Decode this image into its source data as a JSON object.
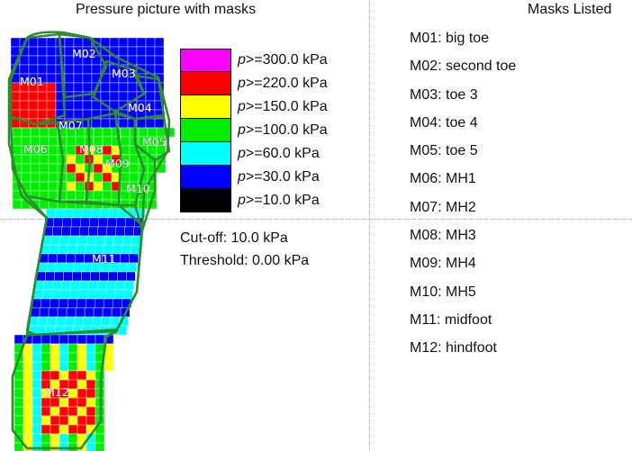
{
  "titles": {
    "left": "Pressure picture with masks",
    "right": "Masks Listed"
  },
  "legend": [
    {
      "sym": "p",
      "text": ">=300.0 kPa",
      "color": "#ff00ff"
    },
    {
      "sym": "p",
      "text": ">=220.0 kPa",
      "color": "#ff0000"
    },
    {
      "sym": "p",
      "text": ">=150.0 kPa",
      "color": "#ffff00"
    },
    {
      "sym": "p",
      "text": ">=100.0 kPa",
      "color": "#00ee00"
    },
    {
      "sym": "p",
      "text": ">=60.0 kPa",
      "color": "#00ffff"
    },
    {
      "sym": "p",
      "text": ">=30.0 kPa",
      "color": "#0000ff"
    },
    {
      "sym": "p",
      "text": ">=10.0 kPa",
      "color": "#000000"
    }
  ],
  "cutoff": "Cut-off: 10.0 kPa",
  "threshold": "Threshold: 0.00 kPa",
  "masks": [
    {
      "id": "M01",
      "name": "big toe"
    },
    {
      "id": "M02",
      "name": "second toe"
    },
    {
      "id": "M03",
      "name": "toe 3"
    },
    {
      "id": "M04",
      "name": "toe 4"
    },
    {
      "id": "M05",
      "name": "toe 5"
    },
    {
      "id": "M06",
      "name": "MH1"
    },
    {
      "id": "M07",
      "name": "MH2"
    },
    {
      "id": "M08",
      "name": "MH3"
    },
    {
      "id": "M09",
      "name": "MH4"
    },
    {
      "id": "M10",
      "name": "MH5"
    },
    {
      "id": "M11",
      "name": "midfoot"
    },
    {
      "id": "M12",
      "name": "hindfoot"
    }
  ],
  "mask_outline_color": "#2e8b2e"
}
